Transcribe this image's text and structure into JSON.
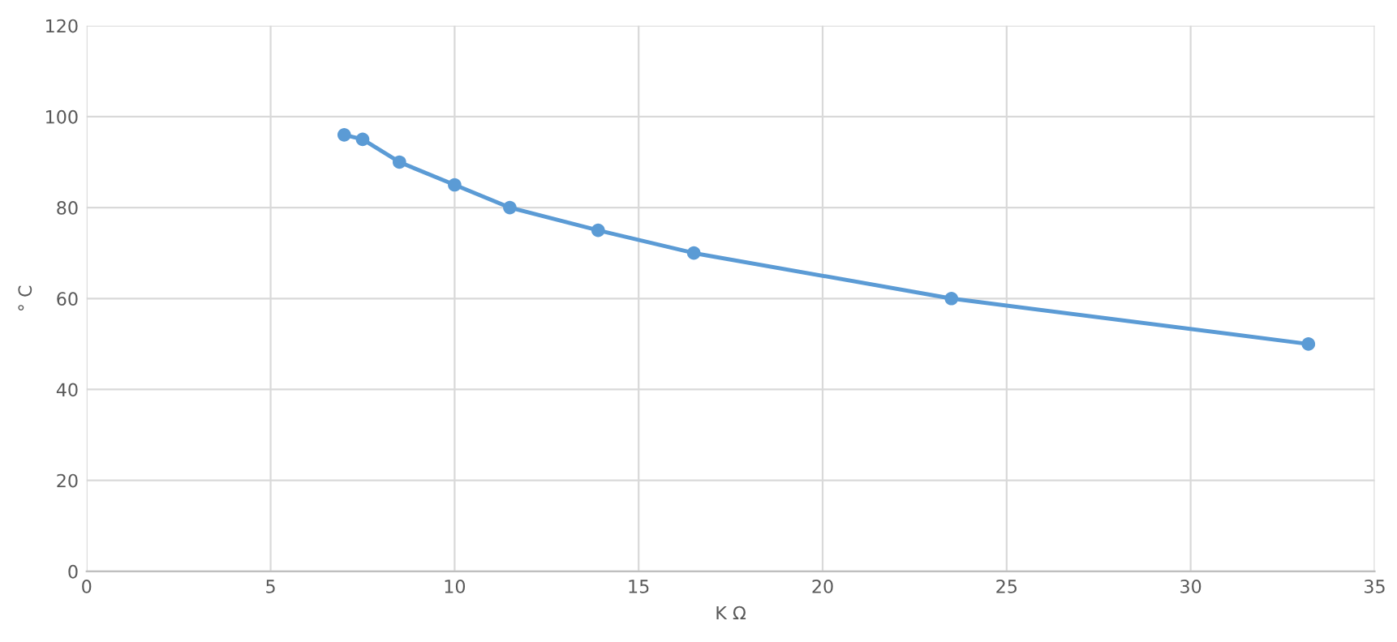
{
  "chart_data": {
    "type": "line",
    "xlabel": "K Ω",
    "ylabel": "° C",
    "series": [
      {
        "color": "#5b9bd5",
        "x": [
          7.0,
          7.5,
          8.5,
          10.0,
          11.5,
          13.9,
          16.5,
          23.5,
          33.2
        ],
        "values": [
          96,
          95,
          90,
          85,
          80,
          75,
          70,
          60,
          50
        ]
      }
    ],
    "xlim": [
      0,
      35
    ],
    "xticks": [
      0,
      5,
      10,
      15,
      20,
      25,
      30,
      35
    ],
    "ylim": [
      0,
      120
    ],
    "yticks": [
      0,
      20,
      40,
      60,
      80,
      100,
      120
    ],
    "grid": true,
    "marker": "circle",
    "line_style": "solid"
  }
}
